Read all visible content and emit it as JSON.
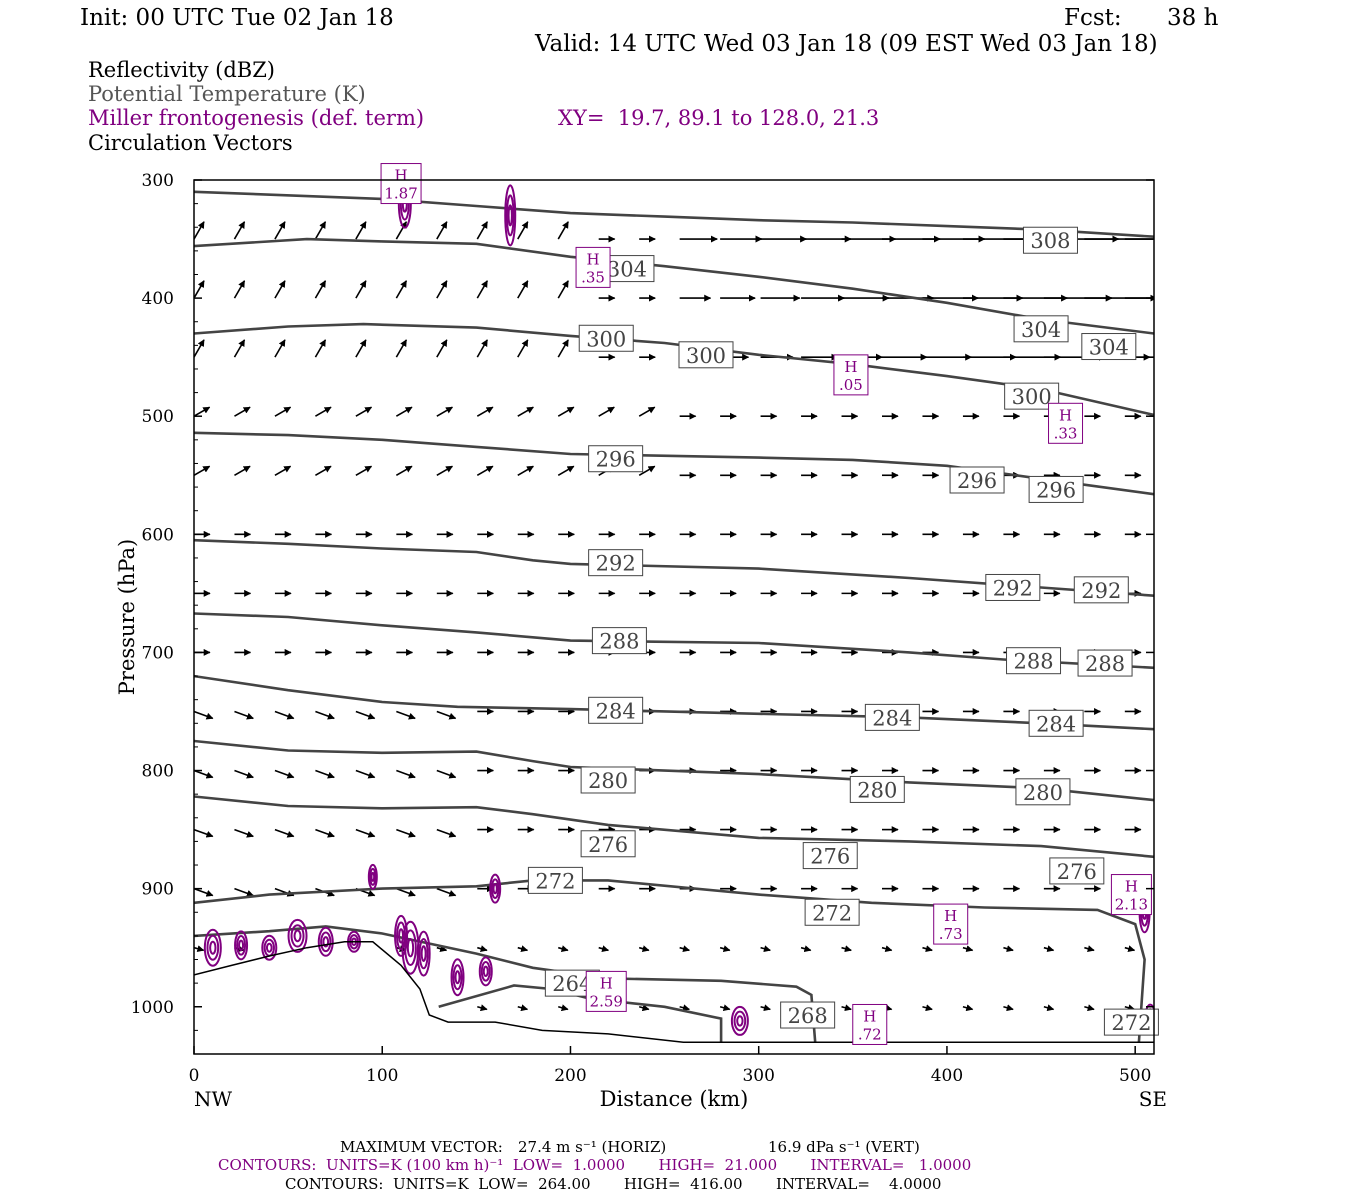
{
  "header": {
    "init": "Init: 00 UTC Tue 02 Jan 18",
    "fcst_label": "Fcst:",
    "fcst_value": "38 h",
    "valid": "Valid: 14 UTC Wed 03 Jan 18 (09 EST Wed 03 Jan 18)"
  },
  "legend": {
    "reflectivity": "Reflectivity (dBZ)",
    "theta": "Potential Temperature (K)",
    "miller": "Miller frontogenesis (def. term)",
    "xy": "XY=  19.7, 89.1 to 128.0, 21.3",
    "vectors": "Circulation Vectors"
  },
  "colors": {
    "theta_line": "#444444",
    "frontogenesis": "#800080",
    "vector": "#000000",
    "terrain": "#000000"
  },
  "footer": {
    "max_vector_label": "MAXIMUM VECTOR:",
    "max_horiz": "27.4 m s⁻¹ (HORIZ)",
    "max_vert": "16.9 dPa s⁻¹ (VERT)",
    "contours1": "CONTOURS:  UNITS=K (100 km h)⁻¹  LOW=  1.0000       HIGH=  21.000       INTERVAL=   1.0000",
    "contours2": "CONTOURS:  UNITS=K  LOW=  264.00       HIGH=  416.00       INTERVAL=    4.0000"
  },
  "chart_data": {
    "type": "cross-section",
    "xlabel": "Distance (km)",
    "ylabel": "Pressure (hPa)",
    "xlim": [
      0,
      510
    ],
    "ylim": [
      1040,
      300
    ],
    "x_ticks": [
      0,
      100,
      200,
      300,
      400,
      500
    ],
    "y_ticks": [
      300,
      400,
      500,
      600,
      700,
      800,
      900,
      1000
    ],
    "x_end_labels": [
      "NW",
      "SE"
    ],
    "theta_contours": [
      {
        "value": 308,
        "points": [
          [
            0,
            310
          ],
          [
            100,
            316
          ],
          [
            150,
            322
          ],
          [
            200,
            328
          ],
          [
            250,
            331
          ],
          [
            300,
            334
          ],
          [
            350,
            336
          ],
          [
            400,
            339
          ],
          [
            450,
            342
          ],
          [
            510,
            348
          ]
        ]
      },
      {
        "value": 304,
        "points": [
          [
            0,
            356
          ],
          [
            60,
            350
          ],
          [
            100,
            352
          ],
          [
            150,
            354
          ],
          [
            200,
            365
          ],
          [
            250,
            373
          ],
          [
            300,
            382
          ],
          [
            350,
            392
          ],
          [
            400,
            404
          ],
          [
            450,
            418
          ],
          [
            510,
            430
          ]
        ]
      },
      {
        "value": 300,
        "points": [
          [
            0,
            430
          ],
          [
            50,
            424
          ],
          [
            90,
            422
          ],
          [
            150,
            425
          ],
          [
            200,
            432
          ],
          [
            250,
            438
          ],
          [
            300,
            448
          ],
          [
            350,
            456
          ],
          [
            400,
            466
          ],
          [
            450,
            477
          ],
          [
            510,
            499
          ]
        ]
      },
      {
        "value": 296,
        "points": [
          [
            0,
            514
          ],
          [
            50,
            516
          ],
          [
            100,
            520
          ],
          [
            150,
            526
          ],
          [
            200,
            532
          ],
          [
            300,
            535
          ],
          [
            350,
            537
          ],
          [
            400,
            542
          ],
          [
            450,
            553
          ],
          [
            510,
            566
          ]
        ]
      },
      {
        "value": 292,
        "points": [
          [
            0,
            605
          ],
          [
            50,
            608
          ],
          [
            100,
            612
          ],
          [
            150,
            615
          ],
          [
            180,
            622
          ],
          [
            200,
            625
          ],
          [
            300,
            629
          ],
          [
            380,
            637
          ],
          [
            450,
            645
          ],
          [
            510,
            652
          ]
        ]
      },
      {
        "value": 288,
        "points": [
          [
            0,
            667
          ],
          [
            50,
            670
          ],
          [
            100,
            677
          ],
          [
            150,
            683
          ],
          [
            200,
            690
          ],
          [
            300,
            692
          ],
          [
            380,
            700
          ],
          [
            430,
            706
          ],
          [
            510,
            713
          ]
        ]
      },
      {
        "value": 284,
        "points": [
          [
            0,
            720
          ],
          [
            50,
            732
          ],
          [
            100,
            742
          ],
          [
            140,
            746
          ],
          [
            200,
            748
          ],
          [
            300,
            752
          ],
          [
            380,
            755
          ],
          [
            450,
            760
          ],
          [
            510,
            765
          ]
        ]
      },
      {
        "value": 280,
        "points": [
          [
            0,
            775
          ],
          [
            50,
            783
          ],
          [
            100,
            785
          ],
          [
            150,
            784
          ],
          [
            180,
            792
          ],
          [
            200,
            797
          ],
          [
            300,
            803
          ],
          [
            380,
            810
          ],
          [
            450,
            815
          ],
          [
            510,
            825
          ]
        ]
      },
      {
        "value": 276,
        "points": [
          [
            0,
            822
          ],
          [
            50,
            830
          ],
          [
            100,
            832
          ],
          [
            150,
            831
          ],
          [
            180,
            837
          ],
          [
            220,
            846
          ],
          [
            300,
            857
          ],
          [
            380,
            860
          ],
          [
            450,
            864
          ],
          [
            510,
            873
          ]
        ]
      },
      {
        "value": 272,
        "points": [
          [
            0,
            912
          ],
          [
            40,
            905
          ],
          [
            100,
            900
          ],
          [
            150,
            898
          ],
          [
            180,
            893
          ],
          [
            220,
            893
          ],
          [
            300,
            905
          ],
          [
            360,
            912
          ],
          [
            420,
            916
          ],
          [
            480,
            918
          ],
          [
            500,
            930
          ],
          [
            505,
            960
          ],
          [
            502,
            1030
          ]
        ]
      },
      {
        "value": 268,
        "points": [
          [
            0,
            940
          ],
          [
            40,
            936
          ],
          [
            70,
            932
          ],
          [
            100,
            938
          ],
          [
            150,
            955
          ],
          [
            180,
            967
          ],
          [
            220,
            976
          ],
          [
            280,
            978
          ],
          [
            320,
            983
          ],
          [
            328,
            990
          ],
          [
            330,
            1030
          ]
        ]
      },
      {
        "value": 264,
        "points": [
          [
            130,
            1000
          ],
          [
            170,
            982
          ],
          [
            190,
            985
          ],
          [
            210,
            993
          ],
          [
            250,
            1000
          ],
          [
            280,
            1010
          ],
          [
            280,
            1030
          ]
        ]
      }
    ],
    "theta_labels": [
      {
        "value": "308",
        "x": 455,
        "p": 351
      },
      {
        "value": "304",
        "x": 230,
        "p": 375
      },
      {
        "value": "304",
        "x": 450,
        "p": 426
      },
      {
        "value": "304",
        "x": 486,
        "p": 441
      },
      {
        "value": "300",
        "x": 219,
        "p": 434
      },
      {
        "value": "300",
        "x": 272,
        "p": 448
      },
      {
        "value": "300",
        "x": 445,
        "p": 483
      },
      {
        "value": "296",
        "x": 224,
        "p": 536
      },
      {
        "value": "296",
        "x": 416,
        "p": 554
      },
      {
        "value": "296",
        "x": 458,
        "p": 562
      },
      {
        "value": "292",
        "x": 224,
        "p": 624
      },
      {
        "value": "292",
        "x": 435,
        "p": 645
      },
      {
        "value": "292",
        "x": 482,
        "p": 647
      },
      {
        "value": "288",
        "x": 226,
        "p": 690
      },
      {
        "value": "288",
        "x": 446,
        "p": 707
      },
      {
        "value": "288",
        "x": 484,
        "p": 709
      },
      {
        "value": "284",
        "x": 224,
        "p": 749
      },
      {
        "value": "284",
        "x": 371,
        "p": 755
      },
      {
        "value": "284",
        "x": 458,
        "p": 760
      },
      {
        "value": "280",
        "x": 220,
        "p": 808
      },
      {
        "value": "280",
        "x": 363,
        "p": 816
      },
      {
        "value": "280",
        "x": 451,
        "p": 818
      },
      {
        "value": "276",
        "x": 220,
        "p": 862
      },
      {
        "value": "276",
        "x": 338,
        "p": 872
      },
      {
        "value": "276",
        "x": 469,
        "p": 885
      },
      {
        "value": "272",
        "x": 192,
        "p": 893
      },
      {
        "value": "272",
        "x": 339,
        "p": 920
      },
      {
        "value": "272",
        "x": 498,
        "p": 1013
      },
      {
        "value": "268",
        "x": 326,
        "p": 1007
      },
      {
        "value": "264",
        "x": 201,
        "p": 980
      }
    ],
    "frontogenesis_maxima": [
      {
        "label": "H",
        "value": "1.87",
        "x": 110,
        "p": 303
      },
      {
        "label": "H",
        "value": ".35",
        "x": 212,
        "p": 374
      },
      {
        "label": "H",
        "value": ".05",
        "x": 349,
        "p": 465
      },
      {
        "label": "H",
        "value": ".33",
        "x": 463,
        "p": 506
      },
      {
        "label": "H",
        "value": "2.13",
        "x": 498,
        "p": 905
      },
      {
        "label": "H",
        "value": ".73",
        "x": 402,
        "p": 930
      },
      {
        "label": "H",
        "value": "2.59",
        "x": 219,
        "p": 987
      },
      {
        "label": "H",
        "value": ".72",
        "x": 359,
        "p": 1015
      }
    ],
    "terrain": [
      [
        0,
        973
      ],
      [
        20,
        965
      ],
      [
        40,
        957
      ],
      [
        60,
        950
      ],
      [
        80,
        945
      ],
      [
        95,
        945
      ],
      [
        110,
        965
      ],
      [
        120,
        985
      ],
      [
        125,
        1007
      ],
      [
        135,
        1013
      ],
      [
        160,
        1013
      ],
      [
        185,
        1020
      ],
      [
        220,
        1023
      ],
      [
        260,
        1030
      ],
      [
        300,
        1030
      ],
      [
        350,
        1030
      ],
      [
        400,
        1030
      ],
      [
        450,
        1030
      ],
      [
        510,
        1030
      ]
    ]
  }
}
